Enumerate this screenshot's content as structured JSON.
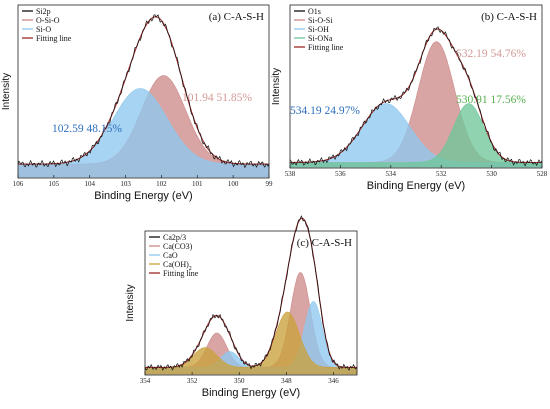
{
  "chart_data": [
    {
      "type": "area",
      "title": "(a) C-A-S-H",
      "xlabel": "Binding Energy (eV)",
      "ylabel": "Intensity",
      "xlim": [
        106,
        99
      ],
      "x_reversed": true,
      "ticks": [
        "106",
        "105",
        "104",
        "103",
        "102",
        "101",
        "100",
        "99"
      ],
      "legend": "top-left",
      "series": [
        {
          "name": "Si2p",
          "kind": "raw",
          "color": "#111111"
        },
        {
          "name": "O-Si-O",
          "kind": "peak",
          "center": 101.94,
          "height": 0.55,
          "sigma": 0.62,
          "color": "#cd8a8a"
        },
        {
          "name": "Si-O",
          "kind": "peak",
          "center": 102.59,
          "height": 0.47,
          "sigma": 0.75,
          "color": "#8ec8ee"
        },
        {
          "name": "Fitting line",
          "kind": "fit",
          "color": "#9e2a2a"
        }
      ],
      "background": 0.08,
      "annotations": [
        {
          "text": "101.94 51.85%",
          "color": "#d49a96"
        },
        {
          "text": "102.59 48.15%",
          "color": "#2f6fbd"
        }
      ]
    },
    {
      "type": "area",
      "title": "(b) C-A-S-H",
      "xlabel": "Binding Energy (eV)",
      "ylabel": "Intensity",
      "xlim": [
        538,
        528
      ],
      "x_reversed": true,
      "ticks": [
        "538",
        "536",
        "534",
        "532",
        "530",
        "528"
      ],
      "legend": "top-left",
      "series": [
        {
          "name": "O1s",
          "kind": "raw",
          "color": "#111111"
        },
        {
          "name": "Si-O-Si",
          "kind": "peak",
          "center": 532.19,
          "height": 0.8,
          "sigma": 0.72,
          "color": "#cd8a8a"
        },
        {
          "name": "Si-OH",
          "kind": "peak",
          "center": 534.19,
          "height": 0.39,
          "sigma": 0.95,
          "color": "#8ec8ee"
        },
        {
          "name": "Si-ONa",
          "kind": "peak",
          "center": 530.91,
          "height": 0.39,
          "sigma": 0.6,
          "color": "#6fc79a"
        },
        {
          "name": "Fitting line",
          "kind": "fit",
          "color": "#9e2a2a"
        }
      ],
      "background": 0.03,
      "annotations": [
        {
          "text": "532.19 54.76%",
          "color": "#d49a96"
        },
        {
          "text": "534.19 24.97%",
          "color": "#2f6fbd"
        },
        {
          "text": "530.91 17.56%",
          "color": "#58b050"
        }
      ]
    },
    {
      "type": "area",
      "title": "(c) C-A-S-H",
      "xlabel": "Binding Energy (eV)",
      "ylabel": "Intensity",
      "xlim": [
        354,
        345
      ],
      "x_reversed": true,
      "ticks": [
        "354",
        "352",
        "350",
        "348",
        "346"
      ],
      "legend": "top-left",
      "series": [
        {
          "name": "Ca2p/3",
          "kind": "raw",
          "color": "#111111"
        },
        {
          "name": "Ca(CO3)",
          "name_sub": "3",
          "kind": "peak",
          "center_list": [
            350.95,
            347.4
          ],
          "height_list": [
            0.26,
            0.72
          ],
          "sigma": 0.42,
          "color": "#cd8a8a"
        },
        {
          "name": "CaO",
          "kind": "peak",
          "center_list": [
            350.4,
            346.85
          ],
          "height_list": [
            0.12,
            0.5
          ],
          "sigma": 0.38,
          "color": "#8ec8ee"
        },
        {
          "name": "Ca(OH)2",
          "name_sub": "2",
          "kind": "peak",
          "center_list": [
            351.45,
            347.95
          ],
          "height_list": [
            0.15,
            0.42
          ],
          "sigma": 0.5,
          "color": "#c9a23c"
        },
        {
          "name": "Fitting line",
          "kind": "fit",
          "color": "#9e2a2a"
        }
      ],
      "background": 0.05,
      "annotations": []
    }
  ]
}
